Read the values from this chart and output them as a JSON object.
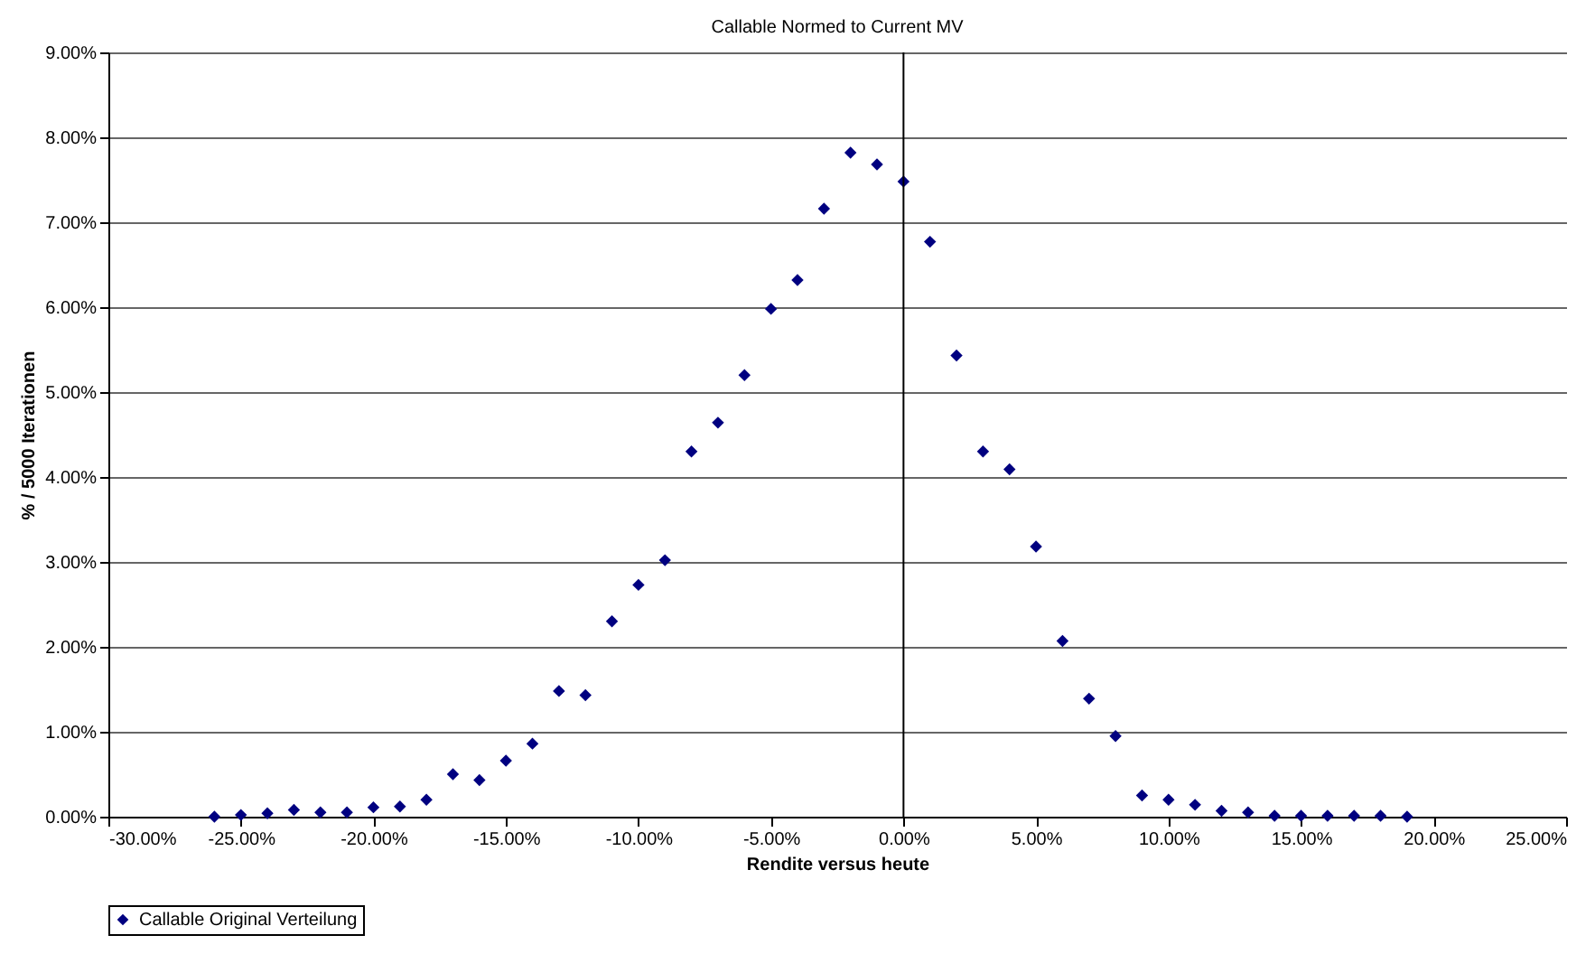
{
  "chart_data": {
    "type": "scatter",
    "title": "Callable Normed to Current MV",
    "xlabel": "Rendite versus heute",
    "ylabel": "% / 5000 Iterationen",
    "x": [
      -26,
      -25,
      -24,
      -23,
      -22,
      -21,
      -20,
      -19,
      -18,
      -17,
      -16,
      -15,
      -14,
      -13,
      -12,
      -11,
      -10,
      -9,
      -8,
      -7,
      -6,
      -5,
      -4,
      -3,
      -2,
      -1,
      0,
      1,
      2,
      3,
      4,
      5,
      6,
      7,
      8,
      9,
      10,
      11,
      12,
      13,
      14,
      15,
      16,
      17,
      18,
      19
    ],
    "series": [
      {
        "name": "Callable Original Verteilung",
        "color": "#000080",
        "values": [
          0.0,
          0.02,
          0.04,
          0.08,
          0.05,
          0.05,
          0.11,
          0.12,
          0.2,
          0.5,
          0.43,
          0.66,
          0.86,
          1.48,
          1.43,
          2.3,
          2.73,
          3.02,
          4.3,
          4.64,
          5.2,
          5.98,
          6.32,
          7.16,
          7.82,
          7.68,
          7.48,
          6.77,
          5.43,
          4.3,
          4.09,
          3.18,
          2.07,
          1.39,
          0.95,
          0.25,
          0.2,
          0.14,
          0.07,
          0.05,
          0.01,
          0.01,
          0.01,
          0.01,
          0.01,
          0.0
        ]
      }
    ],
    "xlim": [
      -30,
      25
    ],
    "xticks": [
      {
        "value": -30,
        "label": "-30.00%"
      },
      {
        "value": -25,
        "label": "-25.00%"
      },
      {
        "value": -20,
        "label": "-20.00%"
      },
      {
        "value": -15,
        "label": "-15.00%"
      },
      {
        "value": -10,
        "label": "-10.00%"
      },
      {
        "value": -5,
        "label": "-5.00%"
      },
      {
        "value": 0,
        "label": "0.00%"
      },
      {
        "value": 5,
        "label": "5.00%"
      },
      {
        "value": 10,
        "label": "10.00%"
      },
      {
        "value": 15,
        "label": "15.00%"
      },
      {
        "value": 20,
        "label": "20.00%"
      },
      {
        "value": 25,
        "label": "25.00%"
      }
    ],
    "ylim": [
      0,
      9
    ],
    "yticks": [
      {
        "value": 0,
        "label": "0.00%"
      },
      {
        "value": 1,
        "label": "1.00%"
      },
      {
        "value": 2,
        "label": "2.00%"
      },
      {
        "value": 3,
        "label": "3.00%"
      },
      {
        "value": 4,
        "label": "4.00%"
      },
      {
        "value": 5,
        "label": "5.00%"
      },
      {
        "value": 6,
        "label": "6.00%"
      },
      {
        "value": 7,
        "label": "7.00%"
      },
      {
        "value": 8,
        "label": "8.00%"
      },
      {
        "value": 9,
        "label": "9.00%"
      }
    ],
    "ref_lines": [
      {
        "axis": "x",
        "value": 0,
        "color": "#000000"
      }
    ],
    "grid": "y",
    "legend": "bottom",
    "marker": "diamond"
  }
}
